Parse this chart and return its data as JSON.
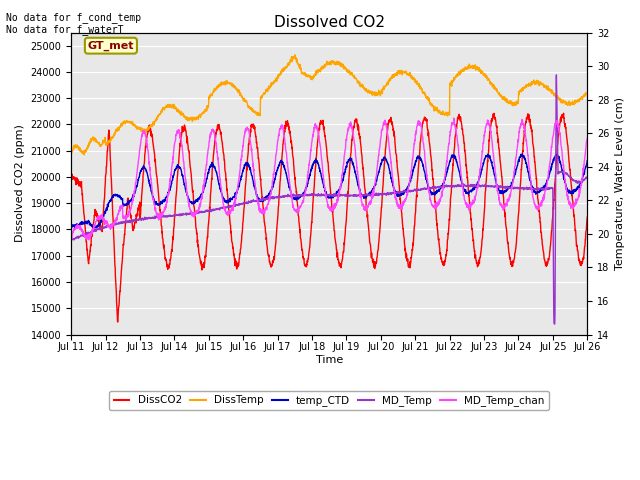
{
  "title": "Dissolved CO2",
  "xlabel": "Time",
  "ylabel_left": "Dissolved CO2 (ppm)",
  "ylabel_right": "Temperature, Water Level (cm)",
  "ylim_left": [
    14000,
    25500
  ],
  "ylim_right": [
    14,
    32
  ],
  "yticks_left": [
    14000,
    15000,
    16000,
    17000,
    18000,
    19000,
    20000,
    21000,
    22000,
    23000,
    24000,
    25000
  ],
  "yticks_right": [
    14,
    16,
    18,
    20,
    22,
    24,
    26,
    28,
    30,
    32
  ],
  "xtick_labels": [
    "Jul 11",
    "Jul 12",
    "Jul 13",
    "Jul 14",
    "Jul 15",
    "Jul 16",
    "Jul 17",
    "Jul 18",
    "Jul 19",
    "Jul 20",
    "Jul 21",
    "Jul 22",
    "Jul 23",
    "Jul 24",
    "Jul 25",
    "Jul 26"
  ],
  "no_data_text1": "No data for f_cond_temp",
  "no_data_text2": "No data for f_waterT",
  "gt_met_label": "GT_met",
  "gt_met_color": "#8B0000",
  "gt_met_bg": "#ffffcc",
  "gt_met_border": "#999900",
  "colors": {
    "DissCO2": "#ff0000",
    "DissTemp": "#ffa500",
    "temp_CTD": "#0000cd",
    "MD_Temp": "#9933cc",
    "MD_Temp_chan": "#ff44ff"
  },
  "plot_bg": "#e8e8e8",
  "grid_color": "#ffffff",
  "fig_bg": "#ffffff",
  "linewidth": 1.0
}
